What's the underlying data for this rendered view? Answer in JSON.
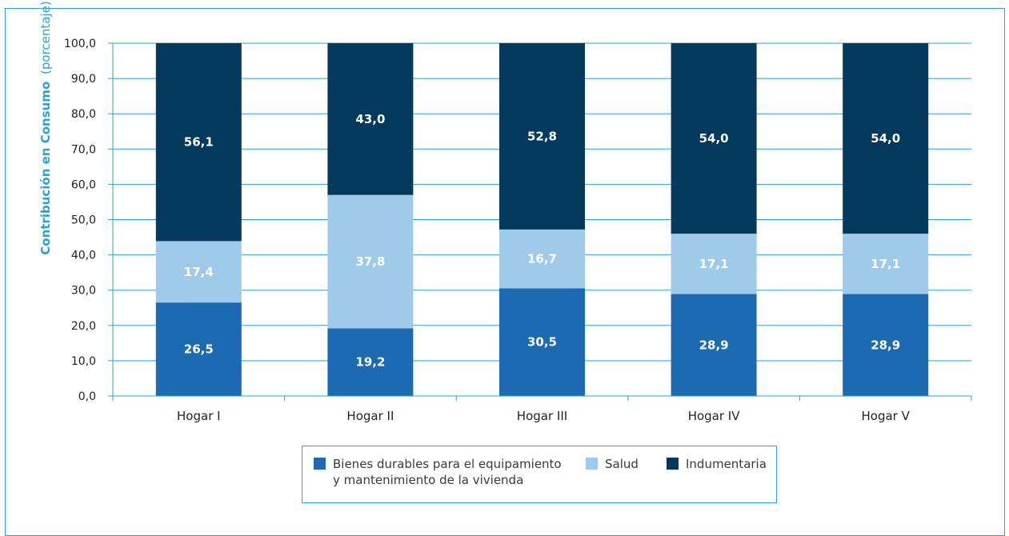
{
  "chart_data": {
    "type": "bar",
    "stacked": true,
    "ylabel_bold": "Contribución en Consumo",
    "ylabel_light": "(porcentaje)",
    "ylim": [
      0,
      100
    ],
    "yticks": [
      "0,0",
      "10,0",
      "20,0",
      "30,0",
      "40,0",
      "50,0",
      "60,0",
      "70,0",
      "80,0",
      "90,0",
      "100,0"
    ],
    "categories": [
      "Hogar I",
      "Hogar II",
      "Hogar III",
      "Hogar IV",
      "Hogar V"
    ],
    "series": [
      {
        "name": "Bienes durables para el equipamiento y mantenimiento de la vivienda",
        "color": "#1b6ab2",
        "values": [
          26.5,
          19.2,
          30.5,
          28.9,
          28.9
        ],
        "labels": [
          "26,5",
          "19,2",
          "30,5",
          "28,9",
          "28,9"
        ]
      },
      {
        "name": "Salud",
        "color": "#9fcaea",
        "values": [
          17.4,
          37.8,
          16.7,
          17.1,
          17.1
        ],
        "labels": [
          "17,4",
          "37,8",
          "16,7",
          "17,1",
          "17,1"
        ]
      },
      {
        "name": "Indumentaria",
        "color": "#02395c",
        "values": [
          56.1,
          43.0,
          52.8,
          54.0,
          54.0
        ],
        "labels": [
          "56,1",
          "43,0",
          "52,8",
          "54,0",
          "54,0"
        ]
      }
    ],
    "legend_position": "bottom",
    "grid": true
  },
  "legend": {
    "item1_line1": "Bienes durables para el equipamiento",
    "item1_line2": "y mantenimiento de la vivienda",
    "item2": "Salud",
    "item3": "Indumentaria"
  },
  "colors": {
    "accent": "#29a3d4",
    "series1": "#1b6ab2",
    "series2": "#9fcaea",
    "series3": "#02395c"
  }
}
